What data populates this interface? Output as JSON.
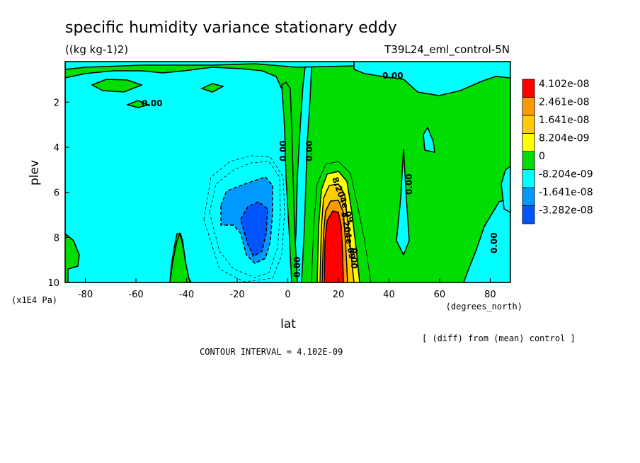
{
  "chart_data": {
    "type": "heatmap",
    "title": "specific humidity variance stationary eddy",
    "units": "((kg kg-1)2)",
    "run_label": "T39L24_eml_control-5N",
    "xlabel": "lat",
    "xunits": "(degrees_north)",
    "ylabel": "plev",
    "yunits": "(x1E4 Pa)",
    "xlim": [
      -88,
      88
    ],
    "ylim": [
      10,
      0.2
    ],
    "x_ticks": [
      "-80",
      "-60",
      "-40",
      "-20",
      "0",
      "20",
      "40",
      "60",
      "80"
    ],
    "y_ticks": [
      "2",
      "4",
      "6",
      "8",
      "10"
    ],
    "note": "[ (diff) from (mean) control ]",
    "contour_interval": "CONTOUR INTERVAL = 4.102E-09",
    "colorbar": {
      "labels": [
        "4.102e-08",
        "2.461e-08",
        "1.641e-08",
        "8.204e-09",
        "0",
        "-8.204e-09",
        "-1.641e-08",
        "-3.282e-08"
      ],
      "colors": [
        "#ff0000",
        "#ff9900",
        "#ffcc00",
        "#ffff00",
        "#00dd00",
        "#00ffff",
        "#0099ff",
        "#0055ff"
      ]
    },
    "contour_labels": [
      "0.00",
      "0.00",
      "0.00",
      "0.00",
      "0.00",
      "0.00",
      "0.00",
      "8.204e-09",
      "8.204e-09",
      "0.00"
    ]
  }
}
